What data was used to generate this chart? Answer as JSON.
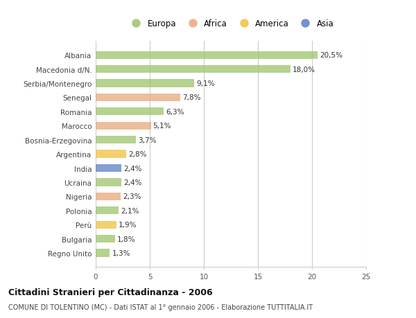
{
  "countries": [
    "Albania",
    "Macedonia d/N.",
    "Serbia/Montenegro",
    "Senegal",
    "Romania",
    "Marocco",
    "Bosnia-Erzegovina",
    "Argentina",
    "India",
    "Ucraina",
    "Nigeria",
    "Polonia",
    "Perù",
    "Bulgaria",
    "Regno Unito"
  ],
  "values": [
    20.5,
    18.0,
    9.1,
    7.8,
    6.3,
    5.1,
    3.7,
    2.8,
    2.4,
    2.4,
    2.3,
    2.1,
    1.9,
    1.8,
    1.3
  ],
  "labels": [
    "20,5%",
    "18,0%",
    "9,1%",
    "7,8%",
    "6,3%",
    "5,1%",
    "3,7%",
    "2,8%",
    "2,4%",
    "2,4%",
    "2,3%",
    "2,1%",
    "1,9%",
    "1,8%",
    "1,3%"
  ],
  "continents": [
    "Europa",
    "Europa",
    "Europa",
    "Africa",
    "Europa",
    "Africa",
    "Europa",
    "America",
    "Asia",
    "Europa",
    "Africa",
    "Europa",
    "America",
    "Europa",
    "Europa"
  ],
  "colors": {
    "Europa": "#9dc36a",
    "Africa": "#e8a87c",
    "America": "#f0c040",
    "Asia": "#5b7fc4"
  },
  "xlim": [
    0,
    25
  ],
  "xticks": [
    0,
    5,
    10,
    15,
    20,
    25
  ],
  "title": "Cittadini Stranieri per Cittadinanza - 2006",
  "subtitle": "COMUNE DI TOLENTINO (MC) - Dati ISTAT al 1° gennaio 2006 - Elaborazione TUTTITALIA.IT",
  "background_color": "#ffffff",
  "bar_height": 0.55,
  "grid_color": "#cccccc",
  "label_fontsize": 7.5,
  "tick_fontsize": 7.5,
  "legend_order": [
    "Europa",
    "Africa",
    "America",
    "Asia"
  ]
}
